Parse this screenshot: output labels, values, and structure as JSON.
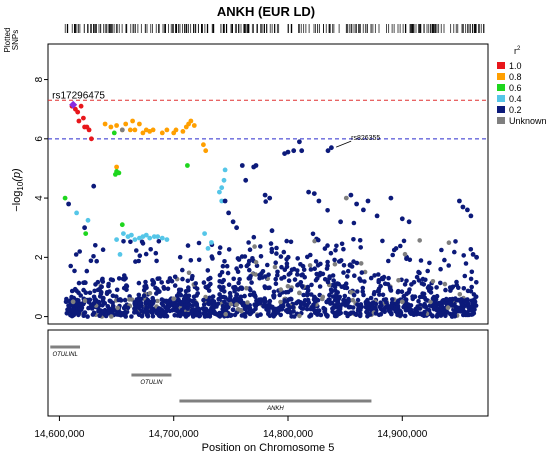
{
  "chart_data": {
    "type": "scatter",
    "title": "ANKH (EUR LD)",
    "xlabel": "Position on Chromosome 5",
    "ylabel_prefix": "−log",
    "ylabel_sub": "10",
    "ylabel_suffix": "(p)",
    "track_label_line1": "Plotted",
    "track_label_line2": "SNPs",
    "xlim": [
      14590000,
      14975000
    ],
    "ylim": [
      -0.25,
      9.2
    ],
    "x_ticks": [
      14600000,
      14700000,
      14800000,
      14900000
    ],
    "x_tick_labels": [
      "14,600,000",
      "14,700,000",
      "14,800,000",
      "14,900,000"
    ],
    "y_ticks": [
      0,
      2,
      4,
      6,
      8
    ],
    "y_tick_labels": [
      "0",
      "2",
      "4",
      "6",
      "8"
    ],
    "grid": false,
    "significance_lines": [
      {
        "y": 7.3,
        "color": "#e03030",
        "style": "dashed"
      },
      {
        "y": 6.0,
        "color": "#2a2acc",
        "style": "dashed"
      }
    ],
    "legend": {
      "title": "r",
      "title_sup": "2",
      "placement": "right",
      "items": [
        {
          "label": "1.0",
          "color": "#e8161b"
        },
        {
          "label": "0.8",
          "color": "#ff9f00"
        },
        {
          "label": "0.6",
          "color": "#1ed61e"
        },
        {
          "label": "0.4",
          "color": "#55c6e8"
        },
        {
          "label": "0.2",
          "color": "#0c1a7a"
        },
        {
          "label": "Unknown",
          "color": "#7f7f7f"
        }
      ]
    },
    "lead_snp": {
      "label": "rs17296475",
      "x": 14612000,
      "y": 7.15,
      "color": "#8a2be2"
    },
    "annotated_snp": {
      "label": "rs826355",
      "x": 14843000,
      "y": 5.72
    },
    "series": [
      {
        "r2": "1.0",
        "color": "#e8161b",
        "points": [
          [
            14611000,
            7.1
          ],
          [
            14614000,
            7.0
          ],
          [
            14617000,
            6.6
          ],
          [
            14619000,
            7.1
          ],
          [
            14621000,
            6.7
          ],
          [
            14622000,
            6.4
          ],
          [
            14624000,
            6.4
          ],
          [
            14626000,
            6.3
          ],
          [
            14628000,
            6.0
          ],
          [
            14616000,
            6.9
          ]
        ]
      },
      {
        "r2": "0.8",
        "color": "#ff9f00",
        "points": [
          [
            14640000,
            6.5
          ],
          [
            14645000,
            6.4
          ],
          [
            14650000,
            6.45
          ],
          [
            14655000,
            6.3
          ],
          [
            14658000,
            6.5
          ],
          [
            14662000,
            6.3
          ],
          [
            14664000,
            6.6
          ],
          [
            14666000,
            6.3
          ],
          [
            14670000,
            6.5
          ],
          [
            14673000,
            6.2
          ],
          [
            14676000,
            6.3
          ],
          [
            14679000,
            6.25
          ],
          [
            14682000,
            6.3
          ],
          [
            14690000,
            6.2
          ],
          [
            14694000,
            6.3
          ],
          [
            14700000,
            6.2
          ],
          [
            14702000,
            6.3
          ],
          [
            14708000,
            6.25
          ],
          [
            14711000,
            6.4
          ],
          [
            14713000,
            6.5
          ],
          [
            14715000,
            6.6
          ],
          [
            14718000,
            6.45
          ],
          [
            14726000,
            5.8
          ],
          [
            14728000,
            5.6
          ],
          [
            14650000,
            5.05
          ]
        ]
      },
      {
        "r2": "0.6",
        "color": "#1ed61e",
        "points": [
          [
            14605000,
            4.0
          ],
          [
            14650000,
            4.9
          ],
          [
            14652000,
            4.85
          ],
          [
            14655000,
            3.1
          ],
          [
            14623000,
            2.8
          ],
          [
            14712000,
            5.1
          ],
          [
            14649000,
            4.8
          ],
          [
            14648000,
            6.2
          ]
        ]
      },
      {
        "r2": "0.4",
        "color": "#55c6e8",
        "points": [
          [
            14615000,
            3.5
          ],
          [
            14625000,
            3.25
          ],
          [
            14650000,
            2.6
          ],
          [
            14653000,
            2.1
          ],
          [
            14656000,
            2.8
          ],
          [
            14660000,
            2.7
          ],
          [
            14663000,
            2.75
          ],
          [
            14666000,
            2.6
          ],
          [
            14670000,
            2.65
          ],
          [
            14673000,
            2.7
          ],
          [
            14676000,
            2.75
          ],
          [
            14679000,
            2.65
          ],
          [
            14683000,
            2.7
          ],
          [
            14686000,
            2.7
          ],
          [
            14690000,
            2.65
          ],
          [
            14694000,
            2.6
          ],
          [
            14730000,
            2.3
          ],
          [
            14733000,
            2.5
          ],
          [
            14727000,
            2.8
          ],
          [
            14740000,
            4.2
          ],
          [
            14742000,
            4.35
          ],
          [
            14744000,
            4.6
          ],
          [
            14745000,
            4.95
          ],
          [
            14742000,
            3.9
          ]
        ]
      },
      {
        "r2": "0.2",
        "color": "#0c1a7a",
        "points": [
          [
            14630000,
            4.4
          ],
          [
            14622000,
            3.0
          ],
          [
            14608000,
            3.8
          ],
          [
            14745000,
            3.9
          ],
          [
            14748000,
            3.5
          ],
          [
            14752000,
            3.2
          ],
          [
            14755000,
            3.0
          ],
          [
            14760000,
            5.1
          ],
          [
            14763000,
            4.6
          ],
          [
            14770000,
            5.05
          ],
          [
            14772000,
            5.1
          ],
          [
            14780000,
            4.1
          ],
          [
            14784000,
            4.0
          ],
          [
            14786000,
            2.9
          ],
          [
            14797000,
            5.5
          ],
          [
            14800000,
            5.55
          ],
          [
            14805000,
            5.6
          ],
          [
            14810000,
            5.9
          ],
          [
            14812000,
            5.6
          ],
          [
            14818000,
            4.2
          ],
          [
            14823000,
            4.15
          ],
          [
            14827000,
            3.9
          ],
          [
            14835000,
            5.6
          ],
          [
            14838000,
            5.7
          ],
          [
            14846000,
            3.2
          ],
          [
            14855000,
            4.1
          ],
          [
            14860000,
            3.8
          ],
          [
            14866000,
            3.6
          ],
          [
            14870000,
            3.9
          ],
          [
            14878000,
            3.4
          ],
          [
            14890000,
            4.0
          ],
          [
            14900000,
            3.3
          ],
          [
            14906000,
            3.2
          ],
          [
            14950000,
            3.9
          ],
          [
            14953000,
            3.7
          ],
          [
            14957000,
            3.6
          ],
          [
            14960000,
            3.4
          ],
          [
            14962000,
            2.1
          ],
          [
            14965000,
            2.0
          ]
        ]
      },
      {
        "r2": "Unknown",
        "color": "#7f7f7f",
        "points": [
          [
            14655000,
            6.3
          ],
          [
            14612000,
            0.5
          ],
          [
            14700000,
            0.6
          ],
          [
            14755000,
            0.4
          ],
          [
            14810000,
            0.8
          ],
          [
            14851000,
            4.0
          ],
          [
            14900000,
            0.5
          ],
          [
            14940000,
            0.3
          ]
        ]
      }
    ],
    "genes": [
      {
        "name": "OTULINL",
        "start": 14592000,
        "end": 14618000,
        "row": 0
      },
      {
        "name": "OTULIN",
        "start": 14663000,
        "end": 14698000,
        "row": 1
      },
      {
        "name": "ANKH",
        "start": 14705000,
        "end": 14873000,
        "row": 2
      }
    ]
  }
}
